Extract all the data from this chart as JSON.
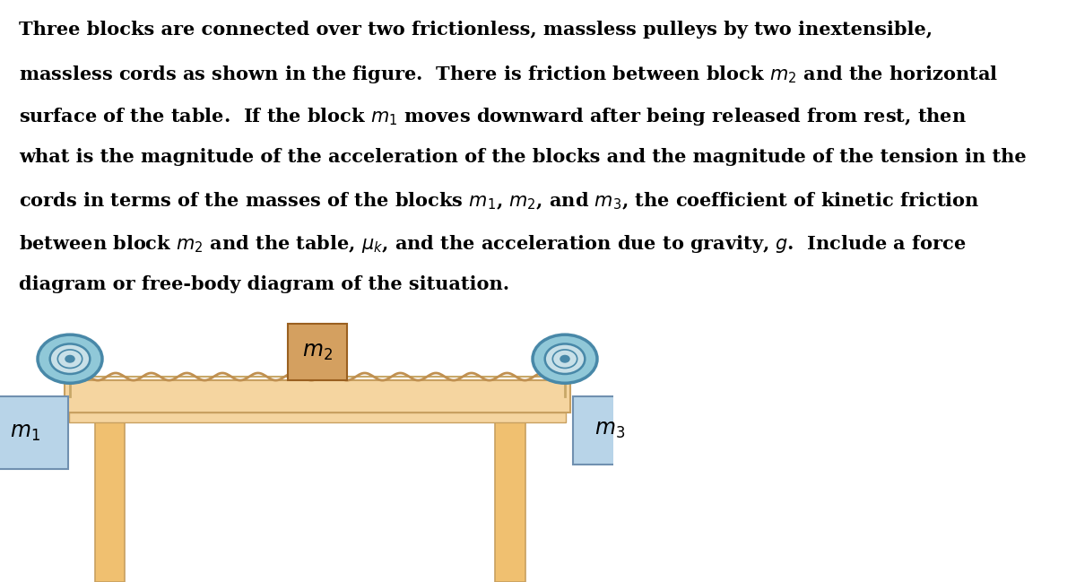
{
  "bg_color": "#ffffff",
  "text_color": "#000000",
  "table_fill": "#f5d5a0",
  "table_edge": "#c8a060",
  "leg_fill": "#f0c070",
  "leg_edge": "#c8a060",
  "m2_fill": "#d4a060",
  "m2_edge": "#9a6020",
  "block_fill": "#b8d4e8",
  "block_edge": "#7090b0",
  "pulley_outer": "#90c8d8",
  "pulley_inner": "#c8e0e8",
  "pulley_ring": "#4888a8",
  "rope_color": "#c8a868",
  "wavy_color": "#c09050",
  "text_lines": [
    "Three blocks are connected over two frictionless, massless pulleys by two inextensible,",
    "massless cords as shown in the figure.  There is friction between block $m_2$ and the horizontal",
    "surface of the table.  If the block $m_1$ moves downward after being released from rest, then",
    "what is the magnitude of the acceleration of the blocks and the magnitude of the tension in the",
    "cords in terms of the masses of the blocks $m_1$, $m_2$, and $m_3$, the coefficient of kinetic friction",
    "between block $m_2$ and the table, $\\mu_k$, and the acceleration due to gravity, $g$.  Include a force",
    "diagram or free-body diagram of the situation."
  ]
}
